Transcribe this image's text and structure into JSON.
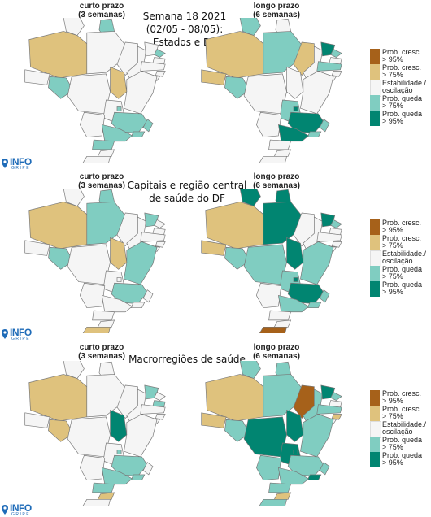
{
  "colors": {
    "prob_cresc_95": "#a6611a",
    "prob_cresc_75": "#dfc27d",
    "estabilidade": "#f5f5f5",
    "prob_queda_75": "#80cdc1",
    "prob_queda_95": "#018571"
  },
  "panels": [
    {
      "left_label": "curto prazo\n(3 semanas)",
      "right_label": "longo prazo\n(6 semanas)",
      "center_title": "Semana 18 2021\n(02/05 - 08/05):\nEstados e DF",
      "left_regions": {
        "AC": "estabilidade",
        "AM": "prob_cresc_75",
        "RR": "estabilidade",
        "AP": "prob_queda_75",
        "PA": "estabilidade",
        "MA": "estabilidade",
        "PI": "estabilidade",
        "CE": "estabilidade",
        "RN": "prob_queda_75",
        "PB": "estabilidade",
        "PE": "estabilidade",
        "AL": "estabilidade",
        "SE": "estabilidade",
        "BA": "estabilidade",
        "TO": "prob_cresc_75",
        "RO": "prob_queda_75",
        "MT": "estabilidade",
        "MS": "estabilidade",
        "GO": "estabilidade",
        "DF": "prob_queda_75",
        "MG": "prob_queda_75",
        "ES": "prob_queda_75",
        "RJ": "prob_queda_75",
        "SP": "prob_queda_75",
        "PR": "prob_queda_75",
        "SC": "estabilidade",
        "RS": "estabilidade"
      },
      "right_regions": {
        "AC": "prob_cresc_75",
        "AM": "prob_cresc_75",
        "RR": "prob_queda_75",
        "AP": "estabilidade",
        "PA": "prob_queda_75",
        "MA": "prob_cresc_75",
        "PI": "estabilidade",
        "CE": "prob_queda_95",
        "RN": "prob_queda_75",
        "PB": "estabilidade",
        "PE": "prob_queda_75",
        "AL": "estabilidade",
        "SE": "estabilidade",
        "BA": "estabilidade",
        "TO": "estabilidade",
        "RO": "prob_queda_75",
        "MT": "estabilidade",
        "MS": "estabilidade",
        "GO": "prob_queda_75",
        "DF": "prob_queda_95",
        "MG": "prob_queda_95",
        "ES": "prob_queda_75",
        "RJ": "prob_queda_75",
        "SP": "prob_queda_95",
        "PR": "estabilidade",
        "SC": "estabilidade",
        "RS": "estabilidade"
      }
    },
    {
      "left_label": "curto prazo\n(3 semanas)",
      "right_label": "longo prazo\n(6 semanas)",
      "center_title": "Capitais e região central\nde saúde do DF",
      "left_regions": {
        "AC": "estabilidade",
        "AM": "prob_cresc_75",
        "RR": "estabilidade",
        "AP": "prob_queda_75",
        "PA": "prob_queda_75",
        "MA": "estabilidade",
        "PI": "estabilidade",
        "CE": "prob_queda_75",
        "RN": "estabilidade",
        "PB": "estabilidade",
        "PE": "estabilidade",
        "AL": "estabilidade",
        "SE": "estabilidade",
        "BA": "prob_queda_75",
        "TO": "prob_cresc_75",
        "RO": "prob_queda_75",
        "MT": "estabilidade",
        "MS": "estabilidade",
        "GO": "estabilidade",
        "DF": "estabilidade",
        "MG": "prob_queda_75",
        "ES": "estabilidade",
        "RJ": "estabilidade",
        "SP": "estabilidade",
        "PR": "estabilidade",
        "SC": "estabilidade",
        "RS": "prob_cresc_75"
      },
      "right_regions": {
        "AC": "prob_cresc_75",
        "AM": "prob_cresc_75",
        "RR": "prob_queda_95",
        "AP": "prob_queda_95",
        "PA": "prob_queda_95",
        "MA": "estabilidade",
        "PI": "estabilidade",
        "CE": "prob_queda_95",
        "RN": "prob_queda_75",
        "PB": "estabilidade",
        "PE": "estabilidade",
        "AL": "estabilidade",
        "SE": "estabilidade",
        "BA": "prob_queda_75",
        "TO": "prob_queda_95",
        "RO": "prob_queda_75",
        "MT": "prob_queda_75",
        "MS": "estabilidade",
        "GO": "prob_queda_75",
        "DF": "prob_queda_95",
        "MG": "prob_queda_95",
        "ES": "prob_queda_75",
        "RJ": "prob_queda_75",
        "SP": "prob_queda_75",
        "PR": "estabilidade",
        "SC": "estabilidade",
        "RS": "prob_cresc_95"
      }
    },
    {
      "left_label": "curto prazo\n(3 semanas)",
      "right_label": "longo prazo\n(6 semanas)",
      "center_title": "Macrorregiões de saúde",
      "left_regions": {
        "AC": "estabilidade",
        "AM": "prob_cresc_75",
        "RR": "estabilidade",
        "AP": "estabilidade",
        "PA": "estabilidade",
        "MA": "estabilidade",
        "PI": "estabilidade",
        "CE": "prob_queda_75",
        "RN": "estabilidade",
        "PB": "prob_queda_75",
        "PE": "estabilidade",
        "AL": "estabilidade",
        "SE": "estabilidade",
        "BA": "estabilidade",
        "TO": "prob_queda_95",
        "RO": "prob_cresc_75",
        "MT": "estabilidade",
        "MS": "estabilidade",
        "GO": "estabilidade",
        "DF": "prob_queda_75",
        "MG": "prob_queda_75",
        "ES": "estabilidade",
        "RJ": "prob_queda_75",
        "SP": "prob_queda_75",
        "PR": "prob_queda_75",
        "SC": "prob_cresc_75",
        "RS": "estabilidade"
      },
      "right_regions": {
        "AC": "prob_cresc_75",
        "AM": "prob_cresc_75",
        "RR": "prob_queda_75",
        "AP": "prob_queda_75",
        "PA": "prob_queda_75",
        "MA": "prob_cresc_95",
        "PI": "prob_queda_75",
        "CE": "prob_queda_95",
        "RN": "prob_queda_75",
        "PB": "estabilidade",
        "PE": "prob_queda_75",
        "AL": "prob_cresc_75",
        "SE": "estabilidade",
        "BA": "prob_queda_75",
        "TO": "prob_queda_95",
        "RO": "prob_queda_75",
        "MT": "prob_queda_95",
        "MS": "prob_queda_75",
        "GO": "prob_queda_95",
        "DF": "prob_queda_95",
        "MG": "prob_queda_75",
        "ES": "prob_queda_75",
        "RJ": "prob_queda_95",
        "SP": "prob_queda_75",
        "PR": "prob_queda_75",
        "SC": "prob_cresc_75",
        "RS": "prob_queda_75"
      }
    }
  ],
  "legend": [
    {
      "key": "prob_cresc_95",
      "label": "Prob. cresc.\n> 95%"
    },
    {
      "key": "prob_cresc_75",
      "label": "Prob. cresc.\n> 75%"
    },
    {
      "key": "estabilidade",
      "label": "Estabilidade./\noscilação"
    },
    {
      "key": "prob_queda_75",
      "label": "Prob. queda\n> 75%"
    },
    {
      "key": "prob_queda_95",
      "label": "Prob. queda\n> 95%"
    }
  ],
  "logo": {
    "text": "INFO",
    "subtext": "GRIPE"
  }
}
